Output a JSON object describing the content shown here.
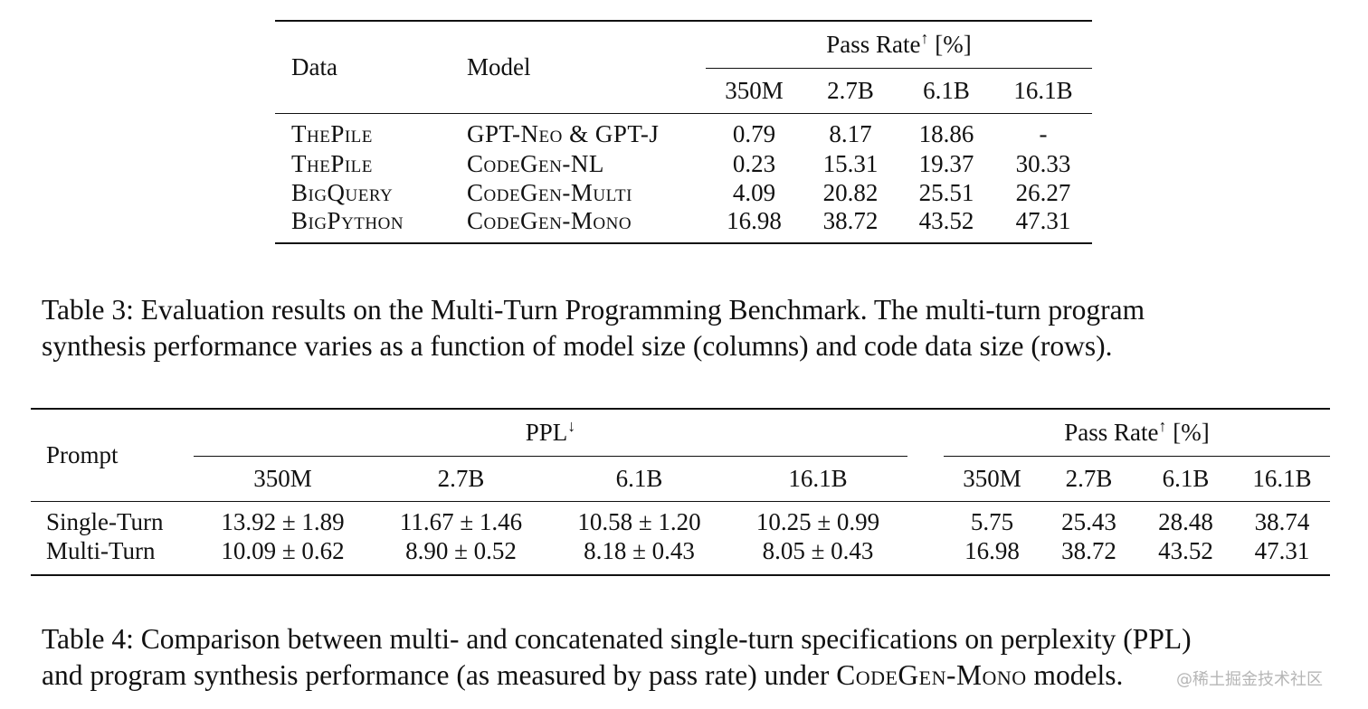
{
  "table3": {
    "col_data": "Data",
    "col_model": "Model",
    "pass_rate_label": "Pass Rate",
    "pass_rate_arrow": "↑",
    "pass_rate_unit": "[%]",
    "sizes": [
      "350M",
      "2.7B",
      "6.1B",
      "16.1B"
    ],
    "rows": [
      {
        "data": "ThePile",
        "model": "GPT-Neo & GPT-J",
        "values": [
          "0.79",
          "8.17",
          "18.86",
          "-"
        ]
      },
      {
        "data": "ThePile",
        "model": "CodeGen-NL",
        "values": [
          "0.23",
          "15.31",
          "19.37",
          "30.33"
        ]
      },
      {
        "data": "BigQuery",
        "model": "CodeGen-Multi",
        "values": [
          "4.09",
          "20.82",
          "25.51",
          "26.27"
        ]
      },
      {
        "data": "BigPython",
        "model": "CodeGen-Mono",
        "values": [
          "16.98",
          "38.72",
          "43.52",
          "47.31"
        ]
      }
    ]
  },
  "caption3": {
    "line1": "Table 3: Evaluation results on the Multi-Turn Programming Benchmark. The multi-turn program",
    "line2": "synthesis performance varies as a function of model size (columns) and code data size (rows)."
  },
  "table4": {
    "col_prompt": "Prompt",
    "ppl_label": "PPL",
    "ppl_arrow": "↓",
    "pass_rate_label": "Pass Rate",
    "pass_rate_arrow": "↑",
    "pass_rate_unit": "[%]",
    "ppl_sizes": [
      "350M",
      "2.7B",
      "6.1B",
      "16.1B"
    ],
    "pass_sizes": [
      "350M",
      "2.7B",
      "6.1B",
      "16.1B"
    ],
    "rows": [
      {
        "prompt": "Single-Turn",
        "ppl": [
          "13.92 ± 1.89",
          "11.67 ± 1.46",
          "10.58 ± 1.20",
          "10.25 ± 0.99"
        ],
        "pass": [
          "5.75",
          "25.43",
          "28.48",
          "38.74"
        ]
      },
      {
        "prompt": "Multi-Turn",
        "ppl": [
          "10.09 ± 0.62",
          "8.90 ± 0.52",
          "8.18 ± 0.43",
          "8.05 ± 0.43"
        ],
        "pass": [
          "16.98",
          "38.72",
          "43.52",
          "47.31"
        ]
      }
    ]
  },
  "caption4": {
    "line1": "Table 4: Comparison between multi- and concatenated single-turn specifications on perplexity (PPL)",
    "line2_prefix": "and program synthesis performance (as measured by pass rate) under ",
    "line2_model": "CodeGen-Mono",
    "line2_suffix": " models."
  },
  "watermark": "@稀土掘金技术社区"
}
